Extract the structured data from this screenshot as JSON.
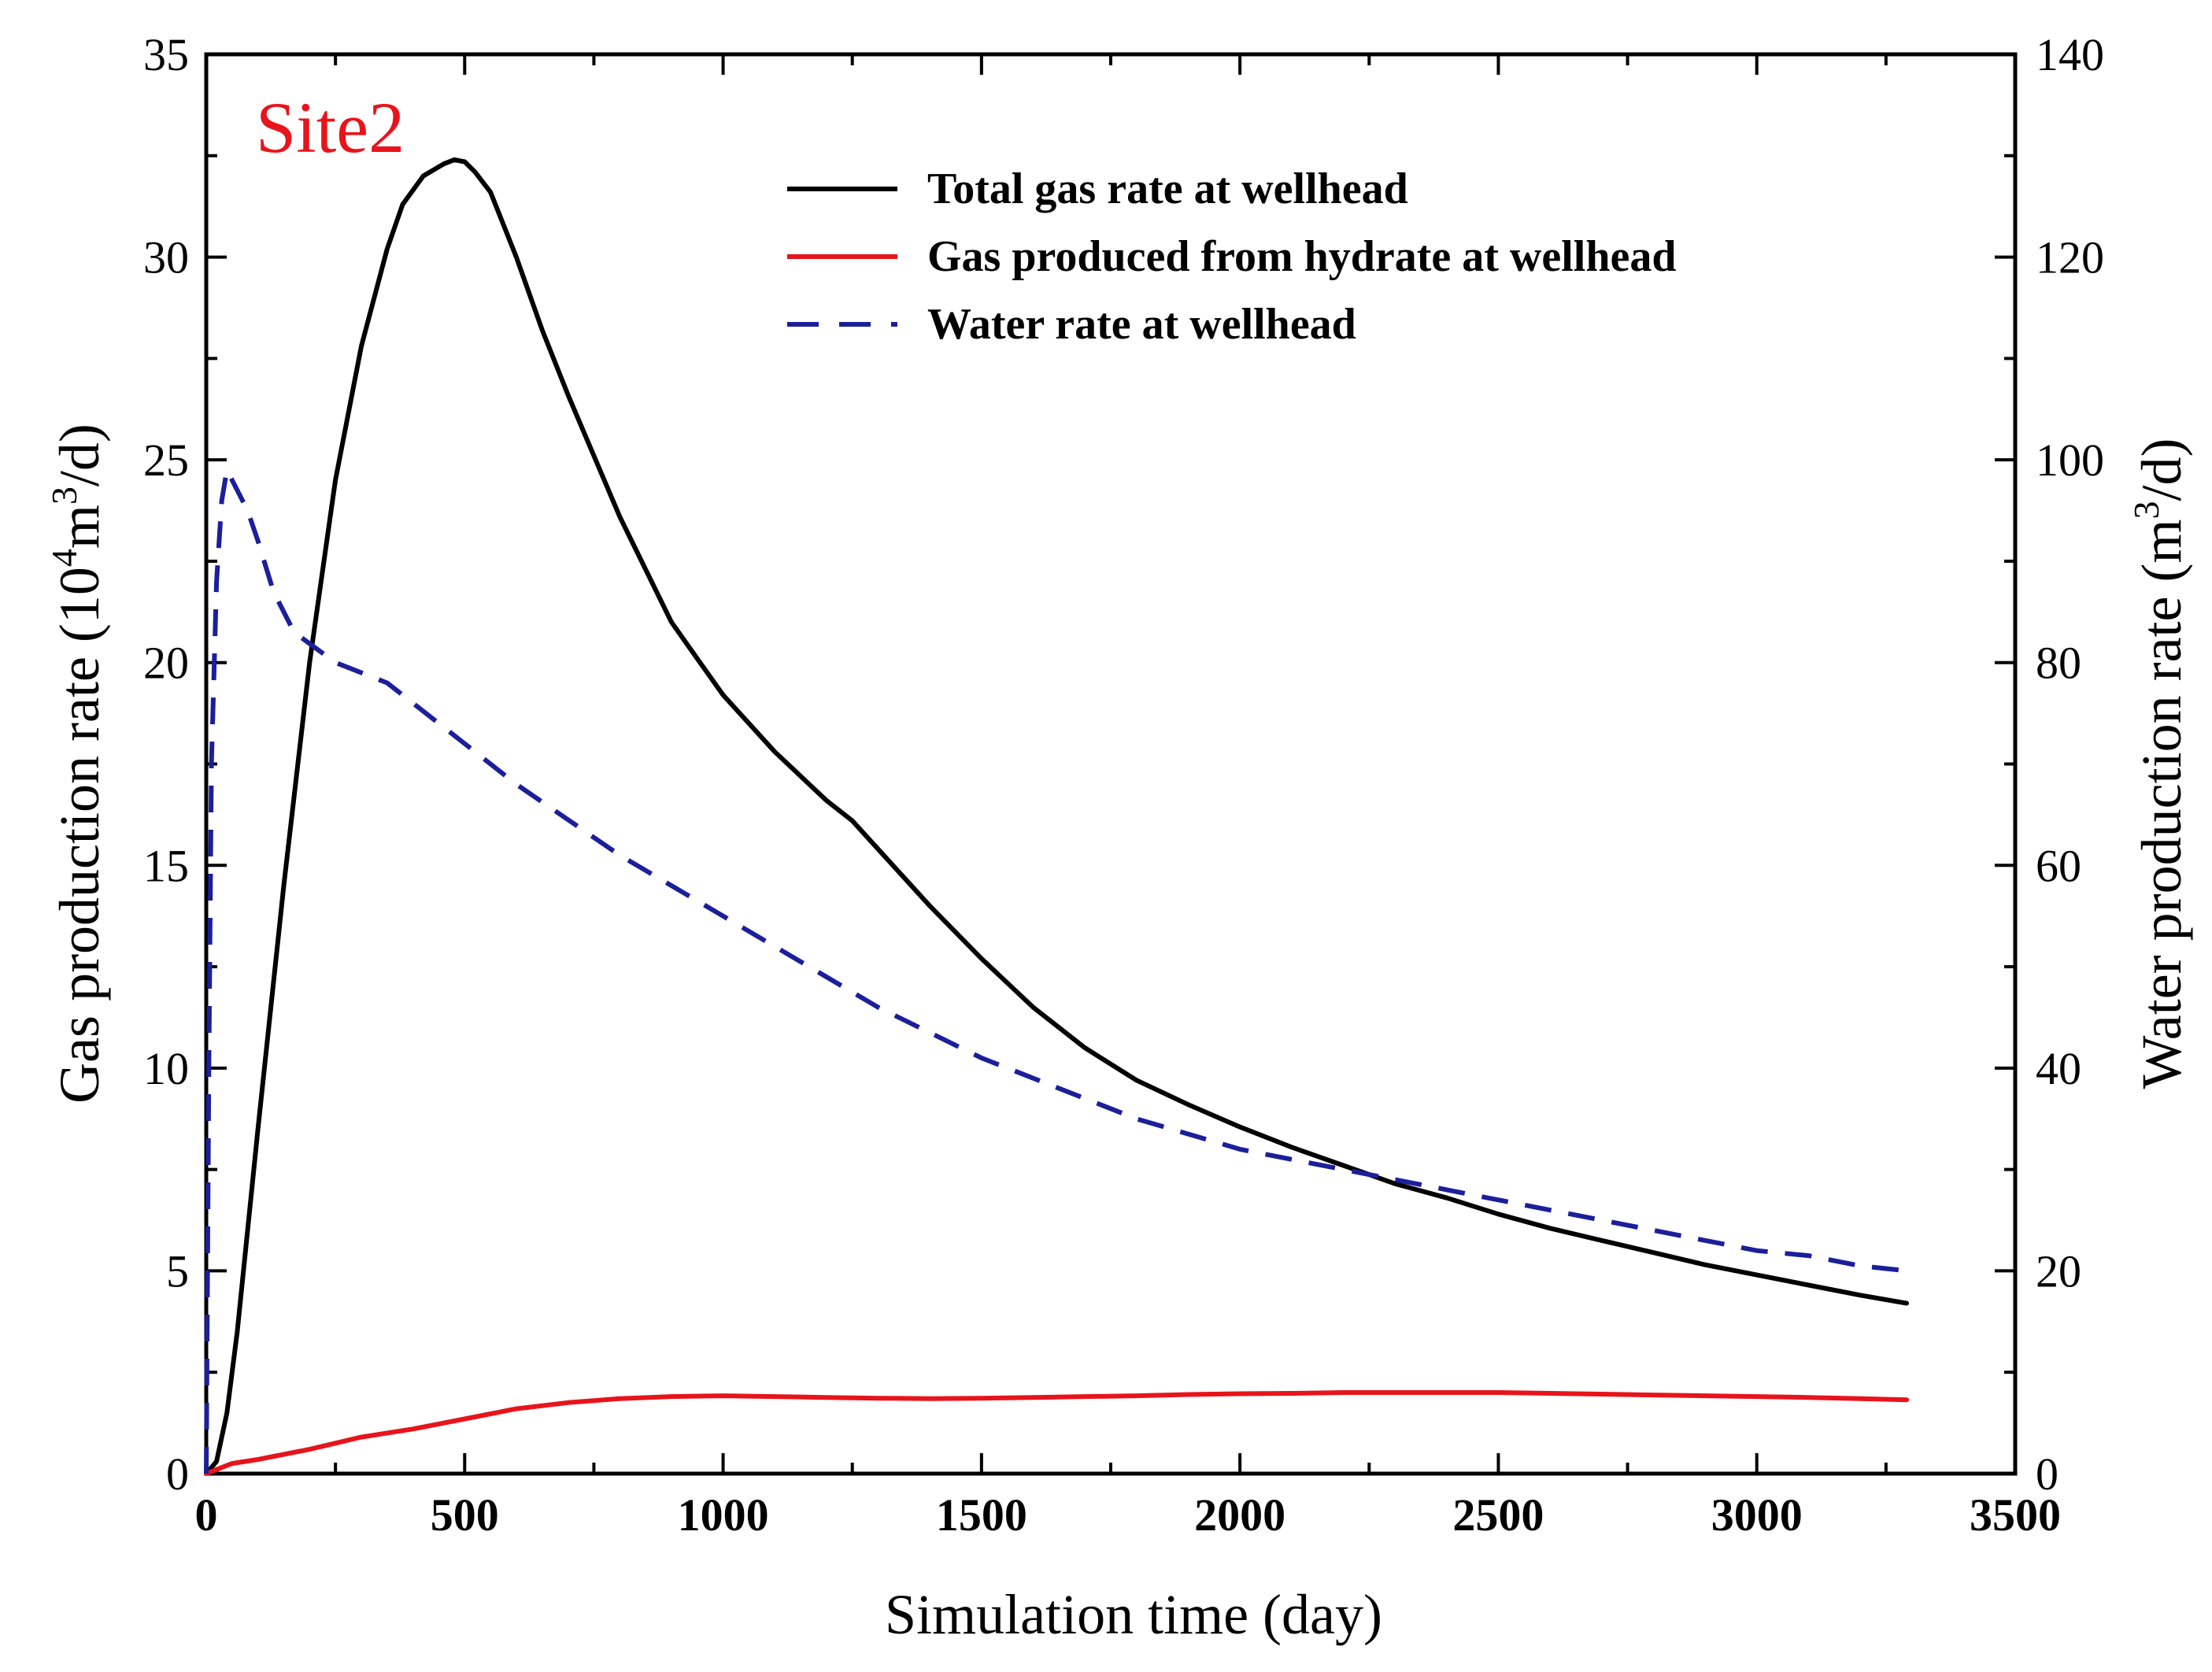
{
  "chart_data": {
    "type": "line",
    "annotation": "Site2",
    "annotation_color": "#e8141b",
    "xlabel": "Simulation time  (day)",
    "ylabel_left": {
      "main": "Gas production rate (10",
      "sup1": "4",
      "mid": "m",
      "sup2": "3",
      "end": "/d)"
    },
    "ylabel_right": {
      "main": "Water production rate (m",
      "sup": "3",
      "end": "/d)"
    },
    "xlim": [
      0,
      3500
    ],
    "ylim_left": [
      0,
      35
    ],
    "ylim_right": [
      0,
      140
    ],
    "x_ticks": [
      0,
      500,
      1000,
      1500,
      2000,
      2500,
      3000,
      3500
    ],
    "y_left_ticks": [
      0,
      5,
      10,
      15,
      20,
      25,
      30,
      35
    ],
    "y_right_ticks": [
      0,
      20,
      40,
      60,
      80,
      100,
      120,
      140
    ],
    "legend_position": "top-right",
    "series": [
      {
        "name": "Total gas rate at wellhead",
        "axis": "left",
        "color": "#000000",
        "style": "solid",
        "x": [
          0,
          20,
          40,
          60,
          100,
          150,
          200,
          250,
          300,
          350,
          380,
          420,
          460,
          480,
          500,
          520,
          550,
          600,
          650,
          700,
          800,
          900,
          950,
          1000,
          1100,
          1200,
          1250,
          1300,
          1400,
          1500,
          1600,
          1700,
          1800,
          1900,
          2000,
          2100,
          2200,
          2300,
          2400,
          2500,
          2600,
          2700,
          2800,
          2900,
          3000,
          3100,
          3200,
          3290
        ],
        "values": [
          0,
          0.3,
          1.5,
          3.5,
          8.5,
          14.5,
          20,
          24.5,
          27.8,
          30.2,
          31.3,
          32.0,
          32.3,
          32.4,
          32.35,
          32.1,
          31.6,
          30.0,
          28.2,
          26.6,
          23.6,
          21.0,
          20.1,
          19.2,
          17.8,
          16.6,
          16.1,
          15.4,
          14.0,
          12.7,
          11.5,
          10.5,
          9.7,
          9.1,
          8.55,
          8.05,
          7.6,
          7.15,
          6.8,
          6.4,
          6.05,
          5.75,
          5.45,
          5.15,
          4.9,
          4.65,
          4.4,
          4.2
        ]
      },
      {
        "name": "Gas produced from hydrate at wellhead",
        "axis": "left",
        "color": "#e8141b",
        "style": "solid",
        "x": [
          0,
          20,
          50,
          100,
          200,
          300,
          400,
          500,
          600,
          700,
          800,
          900,
          1000,
          1100,
          1200,
          1300,
          1400,
          1500,
          1600,
          1700,
          1800,
          1900,
          2000,
          2100,
          2200,
          2300,
          2400,
          2500,
          2600,
          2700,
          2800,
          2900,
          3000,
          3100,
          3200,
          3290
        ],
        "values": [
          0,
          0.1,
          0.25,
          0.35,
          0.6,
          0.9,
          1.1,
          1.35,
          1.6,
          1.75,
          1.85,
          1.9,
          1.92,
          1.9,
          1.88,
          1.86,
          1.85,
          1.86,
          1.88,
          1.9,
          1.92,
          1.95,
          1.97,
          1.98,
          2.0,
          2.0,
          2.0,
          2.0,
          1.98,
          1.96,
          1.94,
          1.92,
          1.9,
          1.88,
          1.85,
          1.82
        ]
      },
      {
        "name": "Water rate at wellhead",
        "axis": "right",
        "color": "#1c1f9a",
        "style": "dashed",
        "x": [
          0,
          5,
          10,
          20,
          30,
          40,
          50,
          60,
          70,
          80,
          100,
          130,
          170,
          250,
          300,
          350,
          400,
          500,
          600,
          700,
          800,
          900,
          1000,
          1100,
          1200,
          1300,
          1400,
          1500,
          1600,
          1700,
          1800,
          1900,
          2000,
          2100,
          2200,
          2300,
          2400,
          2500,
          2600,
          2700,
          2800,
          2900,
          3000,
          3100,
          3200,
          3290
        ],
        "values": [
          0,
          40,
          70,
          88,
          96,
          99,
          98,
          97,
          96,
          95,
          92,
          87,
          83,
          80,
          79,
          78,
          76,
          72,
          68,
          64.5,
          61,
          58,
          55,
          52,
          49,
          46,
          43.5,
          41,
          39,
          37,
          35,
          33.5,
          32,
          31,
          30,
          29,
          28,
          27,
          26,
          25,
          24,
          23,
          22,
          21.5,
          20.5,
          20
        ]
      }
    ]
  }
}
